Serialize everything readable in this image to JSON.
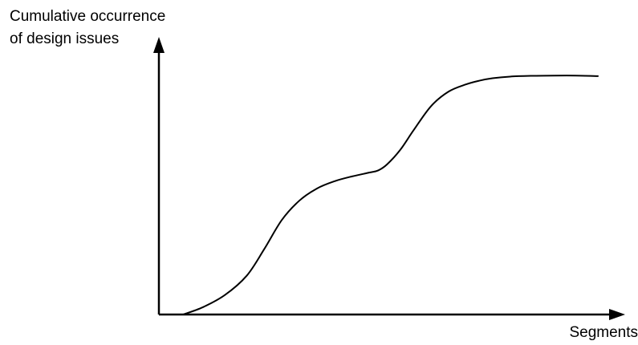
{
  "chart_data": {
    "type": "line",
    "ylabel_lines": [
      "Cumulative occurrence",
      "of design issues"
    ],
    "xlabel": "Segments",
    "x_ticks": [],
    "y_ticks": [],
    "grid": false,
    "legend": "none",
    "xlim": [
      0,
      100
    ],
    "ylim": [
      0,
      100
    ],
    "line_color": "#000000",
    "axis_color": "#000000",
    "series": [
      {
        "x": [
          5.5,
          10,
          15,
          20,
          24,
          28,
          32,
          36,
          40,
          44,
          48,
          50,
          52,
          55,
          58,
          62,
          66,
          70,
          73,
          76,
          80,
          85,
          90,
          95,
          100
        ],
        "y": [
          0,
          3,
          8,
          16,
          27,
          39,
          47,
          52,
          55,
          57,
          58.6,
          59.5,
          62,
          68,
          76,
          86,
          92,
          95,
          96.5,
          97.5,
          98.2,
          98.5,
          98.6,
          98.6,
          98.4
        ]
      }
    ]
  }
}
